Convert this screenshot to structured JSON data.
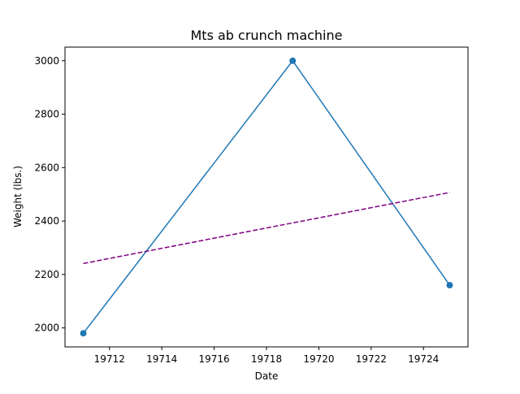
{
  "chart_data": {
    "type": "line",
    "title": "Mts ab crunch machine",
    "xlabel": "Date",
    "ylabel": "Weight (lbs.)",
    "xlim": [
      19710.3,
      19725.7
    ],
    "ylim": [
      1929,
      3051
    ],
    "x_ticks": [
      19712,
      19714,
      19716,
      19718,
      19720,
      19722,
      19724
    ],
    "y_ticks": [
      2000,
      2200,
      2400,
      2600,
      2800,
      3000
    ],
    "grid": false,
    "series": [
      {
        "style": "solid-with-markers",
        "color": "#1f77b4",
        "x": [
          19711,
          19719,
          19725
        ],
        "y": [
          1980,
          3000,
          2160
        ]
      },
      {
        "style": "dashed",
        "color": "#800080",
        "x": [
          19711,
          19725
        ],
        "y": [
          2241,
          2507
        ]
      }
    ]
  }
}
